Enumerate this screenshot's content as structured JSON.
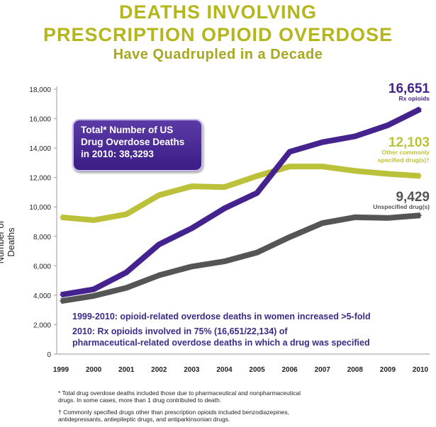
{
  "header": {
    "title_line1": "DEATHS INVOLVING",
    "title_line2": "PRESCRIPTION OPIOID OVERDOSE",
    "subtitle": "Have Quadrupled in a Decade"
  },
  "callout": {
    "line1": "Total* Number of US",
    "line2": "Drug Overdose Deaths",
    "line3": "in 2010: 38,3293"
  },
  "notes": {
    "note1": "1999-2010: opioid-related overdose deaths in women increased >5-fold",
    "note2_line1": "2010: Rx opioids involved in 75% (16,651/22,134) of",
    "note2_line2": "pharmaceutical-related overdose deaths in which a drug was specified"
  },
  "footnotes": {
    "f1_line1": "* Total drug overdose deaths included  those due to pharmaceutical and nonpharmaceutical",
    "f1_line2": "  drugs. In some cases, more than 1 drug contributed to death.",
    "f2_line1": "† Commonly specified drugs other than prescription opioids included benzodiazepines,",
    "f2_line2": "  antidepressants, antiepileptic drugs, and antiparkinsonian drugs."
  },
  "chart_data": {
    "type": "line",
    "ylabel": "Number of Deaths",
    "xlabel": "",
    "ylim": [
      0,
      18000
    ],
    "yticks": [
      0,
      2000,
      4000,
      6000,
      8000,
      10000,
      12000,
      14000,
      16000,
      18000
    ],
    "ytick_labels": [
      "0",
      "2,000",
      "4,000",
      "6,000",
      "8,000",
      "10,000",
      "12,000",
      "14,000",
      "16,000",
      "18,000"
    ],
    "x": [
      1999,
      2000,
      2001,
      2002,
      2003,
      2004,
      2005,
      2006,
      2007,
      2008,
      2009,
      2010
    ],
    "x_labels": [
      "1999",
      "2000",
      "2001",
      "2002",
      "2003",
      "2004",
      "2005",
      "2006",
      "2007",
      "2008",
      "2009",
      "2010"
    ],
    "grid": false,
    "series": [
      {
        "name": "Other commonly specified drug(s)†",
        "color": "#bcc13a",
        "values": [
          9300,
          9100,
          9500,
          10800,
          11400,
          11350,
          12100,
          12750,
          12750,
          12450,
          12250,
          12103
        ],
        "end_label": "12,103",
        "end_caption_line1": "Other commonly",
        "end_caption_line2": "specified  drug(s)†"
      },
      {
        "name": "Unspecified drug(s)",
        "color": "#555555",
        "values": [
          3600,
          3950,
          4500,
          5350,
          5950,
          6300,
          6900,
          7950,
          8900,
          9300,
          9250,
          9429
        ],
        "end_label": "9,429",
        "end_caption_line1": "Unspecified drug(s)",
        "end_caption_line2": ""
      },
      {
        "name": "Rx opioids",
        "color": "#45238f",
        "values": [
          4030,
          4400,
          5550,
          7450,
          8550,
          9900,
          10950,
          13750,
          14400,
          14800,
          15550,
          16651
        ],
        "end_label": "16,651",
        "end_caption_line1": "Rx opioids",
        "end_caption_line2": ""
      }
    ]
  }
}
